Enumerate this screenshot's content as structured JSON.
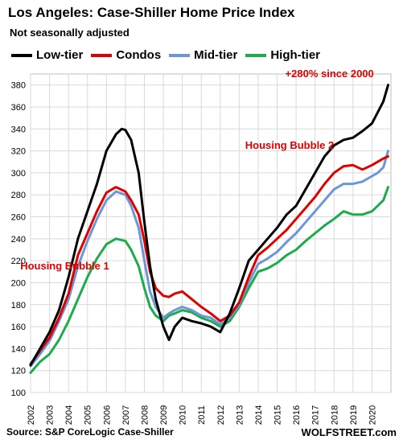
{
  "title": "Los Angeles: Case-Shiller Home Price Index",
  "subtitle": "Not seasonally adjusted",
  "source": "Source: S&P CoreLogic Case-Shiller",
  "brand": "WOLFSTREET.com",
  "chart_data": {
    "type": "line",
    "title": "Los Angeles: Case-Shiller Home Price Index",
    "subtitle": "Not seasonally adjusted",
    "ylim": [
      100,
      390
    ],
    "xlim": [
      2002,
      2021
    ],
    "grid": true,
    "legend_position": "top",
    "y_ticks": [
      100,
      120,
      140,
      160,
      180,
      200,
      220,
      240,
      260,
      280,
      300,
      320,
      340,
      360,
      380
    ],
    "x_ticks": [
      "2002",
      "2003",
      "2004",
      "2005",
      "2006",
      "2007",
      "2008",
      "2009",
      "2010",
      "2011",
      "2012",
      "2013",
      "2014",
      "2015",
      "2016",
      "2017",
      "2018",
      "2019",
      "2020"
    ],
    "series": [
      {
        "name": "Low-tier",
        "color": "#000000",
        "x": [
          2002,
          2002.5,
          2003,
          2003.5,
          2004,
          2004.5,
          2005,
          2005.5,
          2006,
          2006.5,
          2006.8,
          2007,
          2007.3,
          2007.7,
          2008,
          2008.3,
          2008.6,
          2009,
          2009.3,
          2009.6,
          2010,
          2010.5,
          2011,
          2011.5,
          2012,
          2012.5,
          2013,
          2013.5,
          2014,
          2014.5,
          2015,
          2015.5,
          2016,
          2016.5,
          2017,
          2017.5,
          2018,
          2018.5,
          2019,
          2019.5,
          2020,
          2020.3,
          2020.6,
          2020.85
        ],
        "values": [
          125,
          140,
          155,
          175,
          205,
          240,
          265,
          290,
          320,
          335,
          340,
          339,
          330,
          300,
          255,
          215,
          185,
          160,
          148,
          160,
          168,
          165,
          163,
          160,
          155,
          172,
          195,
          220,
          230,
          240,
          250,
          262,
          270,
          285,
          300,
          315,
          325,
          330,
          332,
          338,
          345,
          355,
          365,
          380
        ]
      },
      {
        "name": "Condos",
        "color": "#e00000",
        "x": [
          2002,
          2002.5,
          2003,
          2003.5,
          2004,
          2004.5,
          2005,
          2005.5,
          2006,
          2006.5,
          2007,
          2007.3,
          2007.7,
          2008,
          2008.3,
          2008.6,
          2009,
          2009.3,
          2009.6,
          2010,
          2010.5,
          2011,
          2011.5,
          2012,
          2012.5,
          2013,
          2013.5,
          2014,
          2014.5,
          2015,
          2015.5,
          2016,
          2016.5,
          2017,
          2017.5,
          2018,
          2018.5,
          2019,
          2019.5,
          2020,
          2020.3,
          2020.6,
          2020.85
        ],
        "values": [
          126,
          138,
          150,
          168,
          190,
          225,
          245,
          265,
          282,
          287,
          283,
          275,
          262,
          238,
          210,
          195,
          188,
          187,
          190,
          192,
          185,
          178,
          172,
          165,
          170,
          182,
          205,
          225,
          232,
          240,
          248,
          258,
          268,
          278,
          290,
          300,
          306,
          307,
          303,
          307,
          310,
          313,
          315
        ]
      },
      {
        "name": "Mid-tier",
        "color": "#6b97d6",
        "x": [
          2002,
          2002.5,
          2003,
          2003.5,
          2004,
          2004.5,
          2005,
          2005.5,
          2006,
          2006.5,
          2007,
          2007.3,
          2007.7,
          2008,
          2008.3,
          2008.6,
          2009,
          2009.3,
          2009.6,
          2010,
          2010.5,
          2011,
          2011.5,
          2012,
          2012.5,
          2013,
          2013.5,
          2014,
          2014.5,
          2015,
          2015.5,
          2016,
          2016.5,
          2017,
          2017.5,
          2018,
          2018.5,
          2019,
          2019.5,
          2020,
          2020.3,
          2020.6,
          2020.85
        ],
        "values": [
          124,
          135,
          147,
          165,
          185,
          215,
          238,
          258,
          275,
          283,
          280,
          270,
          250,
          220,
          192,
          178,
          168,
          172,
          175,
          178,
          175,
          170,
          168,
          162,
          168,
          180,
          200,
          217,
          222,
          228,
          237,
          245,
          255,
          265,
          275,
          285,
          290,
          290,
          292,
          297,
          300,
          305,
          320
        ]
      },
      {
        "name": "High-tier",
        "color": "#1cac4b",
        "x": [
          2002,
          2002.5,
          2003,
          2003.5,
          2004,
          2004.5,
          2005,
          2005.5,
          2006,
          2006.5,
          2007,
          2007.3,
          2007.7,
          2008,
          2008.3,
          2008.6,
          2009,
          2009.3,
          2009.6,
          2010,
          2010.5,
          2011,
          2011.5,
          2012,
          2012.5,
          2013,
          2013.5,
          2014,
          2014.5,
          2015,
          2015.5,
          2016,
          2016.5,
          2017,
          2017.5,
          2018,
          2018.5,
          2019,
          2019.5,
          2020,
          2020.3,
          2020.6,
          2020.85
        ],
        "values": [
          118,
          128,
          135,
          148,
          165,
          185,
          205,
          222,
          235,
          240,
          238,
          230,
          215,
          195,
          178,
          170,
          165,
          170,
          172,
          175,
          173,
          168,
          165,
          160,
          165,
          178,
          195,
          210,
          213,
          218,
          225,
          230,
          238,
          245,
          252,
          258,
          265,
          262,
          262,
          265,
          270,
          275,
          287
        ]
      }
    ],
    "annotations": [
      {
        "text": "+280% since 2000",
        "x": 2020.1,
        "y": 387,
        "color": "#e00000"
      },
      {
        "text": "Housing Bubble 2",
        "x": 2018.0,
        "y": 322,
        "color": "#e00000"
      },
      {
        "text": "Housing Bubble 1",
        "x": 2003.8,
        "y": 212,
        "color": "#e00000"
      }
    ]
  }
}
